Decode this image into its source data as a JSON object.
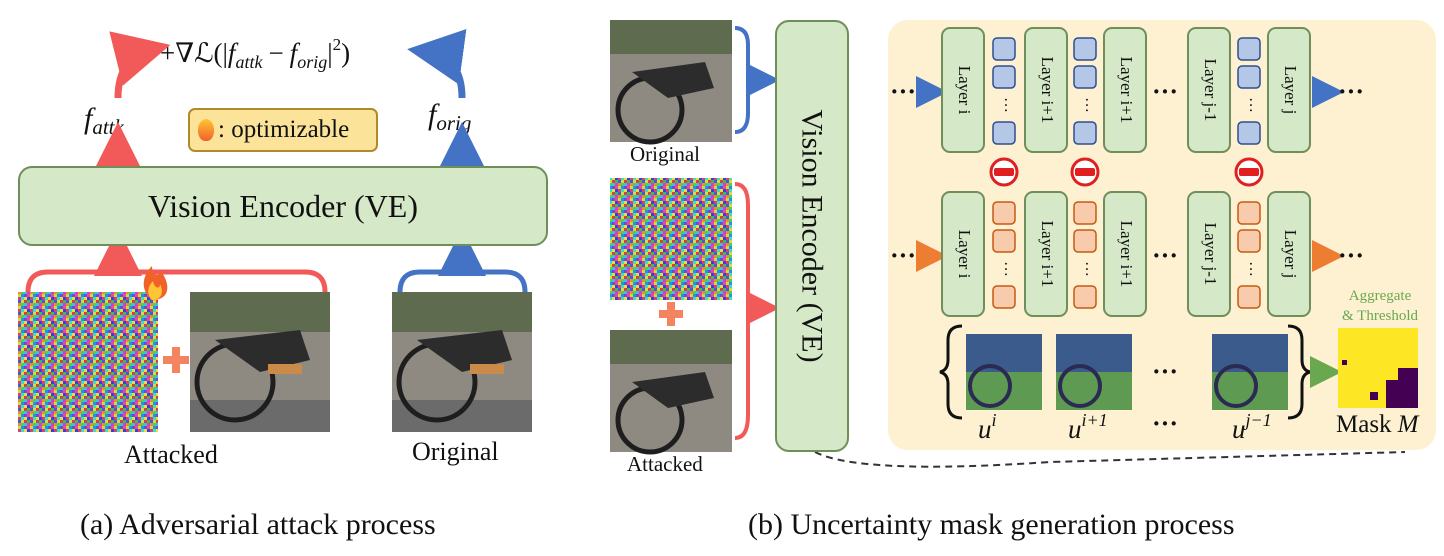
{
  "panel_a": {
    "caption": "(a) Adversarial attack process",
    "loss_prefix": "+∇ℒ(|",
    "f_attk_main": "f",
    "f_attk_sub": "attk",
    "minus": "−",
    "f_orig_main": "f",
    "f_orig_sub": "orig",
    "loss_suffix": "|",
    "loss_exp": "2",
    "loss_close": ")",
    "legend_text": ": optimizable",
    "encoder_label": "Vision Encoder (VE)",
    "attacked_label": "Attacked",
    "original_label": "Original"
  },
  "panel_b": {
    "caption": "(b) Uncertainty mask generation process",
    "original_label": "Original",
    "attacked_label": "Attacked",
    "encoder_label": "Vision Encoder (VE)",
    "layers_top": [
      "Layer i",
      "Layer i+1",
      "Layer i+1",
      "Layer j-1",
      "Layer j-1",
      "Layer j"
    ],
    "layers_bottom": [
      "Layer i",
      "Layer i+1",
      "Layer i+1",
      "Layer j-1",
      "Layer j-1",
      "Layer j"
    ],
    "dots": "···",
    "ellipsis": "⋯",
    "u_labels": [
      {
        "base": "u",
        "sup": "i"
      },
      {
        "base": "u",
        "sup": "i+1"
      },
      {
        "base": "u",
        "sup": "j−1"
      }
    ],
    "aggregate_line1": "Aggregate",
    "aggregate_line2": "& Threshold",
    "mask_label": "Mask",
    "mask_symbol": "M"
  },
  "colors": {
    "attack_red": "#f25a5a",
    "orig_blue": "#4472c4",
    "encoder_fill": "#d5e8c7",
    "panel_bg": "#fdf1d2",
    "token_blue": "#b4c7e7",
    "token_orange": "#f8cbad",
    "aggregate_green": "#6aa84f",
    "mask_yellow": "#fde725",
    "mask_purple": "#440154"
  }
}
